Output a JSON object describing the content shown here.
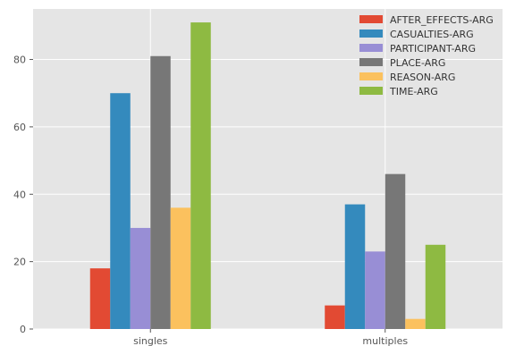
{
  "chart_data": {
    "type": "bar",
    "categories": [
      "singles",
      "multiples"
    ],
    "series": [
      {
        "name": "AFTER_EFFECTS-ARG",
        "color": "#E24A33",
        "values": [
          18,
          7
        ]
      },
      {
        "name": "CASUALTIES-ARG",
        "color": "#348ABD",
        "values": [
          70,
          37
        ]
      },
      {
        "name": "PARTICIPANT-ARG",
        "color": "#988ED5",
        "values": [
          30,
          23
        ]
      },
      {
        "name": "PLACE-ARG",
        "color": "#777777",
        "values": [
          81,
          46
        ]
      },
      {
        "name": "REASON-ARG",
        "color": "#FBC15E",
        "values": [
          36,
          3
        ]
      },
      {
        "name": "TIME-ARG",
        "color": "#8EBA42",
        "values": [
          91,
          25
        ]
      }
    ],
    "ylim": [
      0,
      95
    ],
    "yticks": [
      0,
      20,
      40,
      60,
      80
    ],
    "grid": true,
    "legend_position": "top-right",
    "style": {
      "plot_bg": "#E5E5E5",
      "grid_color": "#FFFFFF",
      "tick_color": "#555555"
    }
  }
}
